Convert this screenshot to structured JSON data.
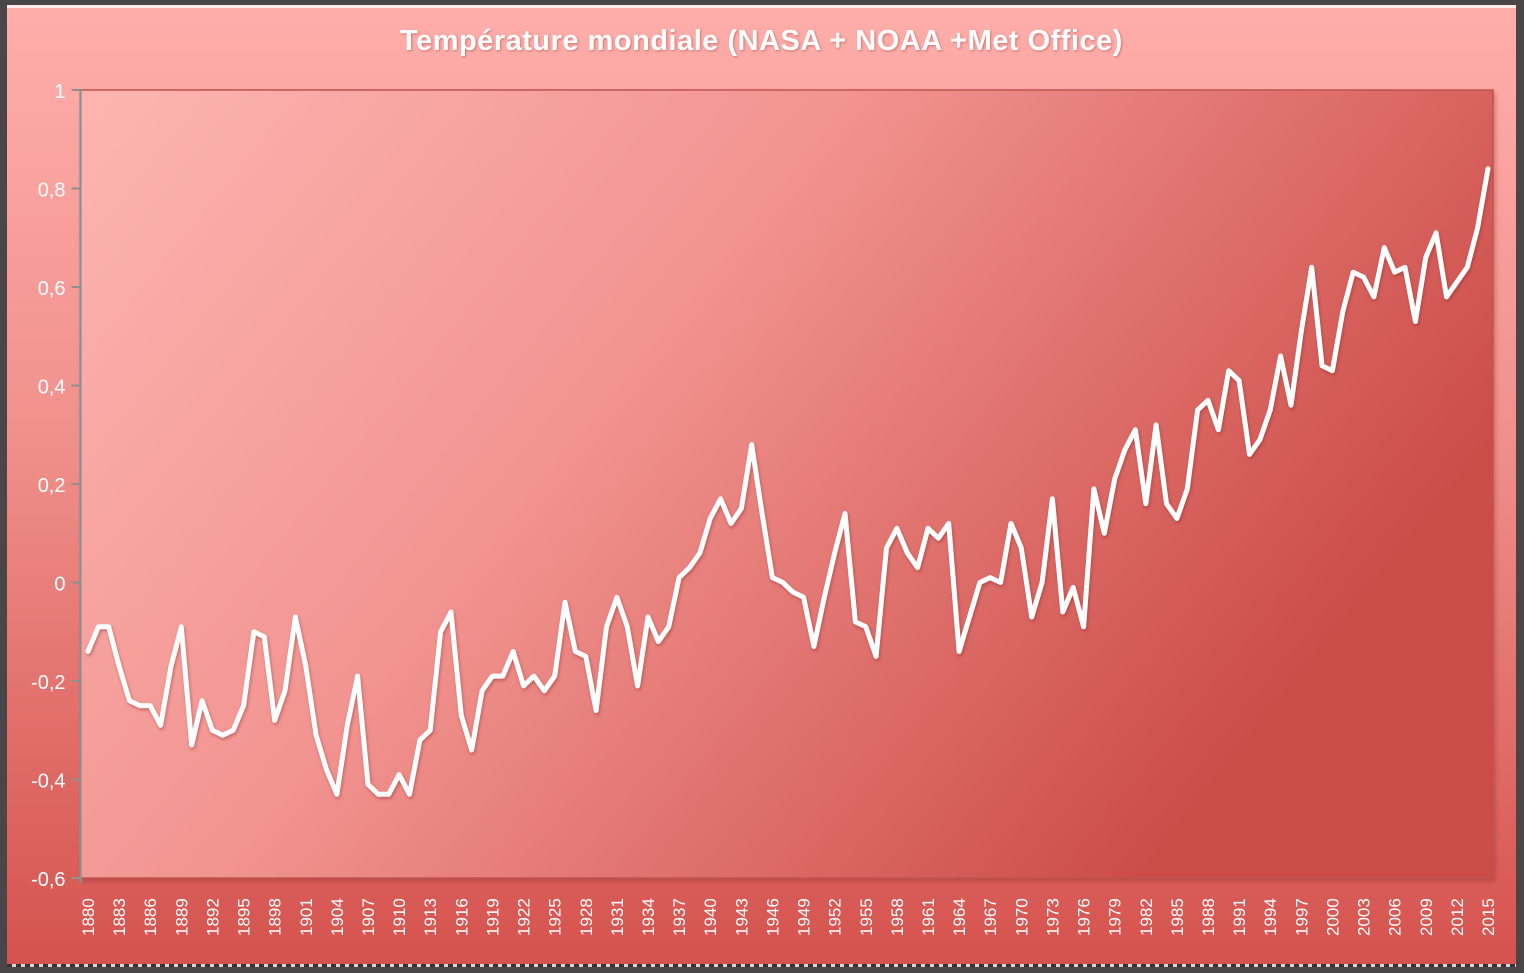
{
  "chart_data": {
    "type": "line",
    "title": "Température mondiale (NASA + NOAA +Met Office)",
    "xlabel": "",
    "ylabel": "",
    "ylim": [
      -0.6,
      1
    ],
    "grid": false,
    "legend_position": "none",
    "decimal_separator": ",",
    "yticks": [
      1,
      0.8,
      0.6,
      0.4,
      0.2,
      0,
      -0.2,
      -0.4,
      -0.6
    ],
    "ytick_labels": [
      "1",
      "0,8",
      "0,6",
      "0,4",
      "0,2",
      "0",
      "-0,2",
      "-0,4",
      "-0,6"
    ],
    "xticks": [
      1880,
      1883,
      1886,
      1889,
      1892,
      1895,
      1898,
      1901,
      1904,
      1907,
      1910,
      1913,
      1916,
      1919,
      1922,
      1925,
      1928,
      1931,
      1934,
      1937,
      1940,
      1943,
      1946,
      1949,
      1952,
      1955,
      1958,
      1961,
      1964,
      1967,
      1970,
      1973,
      1976,
      1979,
      1982,
      1985,
      1988,
      1991,
      1994,
      1997,
      2000,
      2003,
      2006,
      2009,
      2012,
      2015
    ],
    "x": [
      1880,
      1881,
      1882,
      1883,
      1884,
      1885,
      1886,
      1887,
      1888,
      1889,
      1890,
      1891,
      1892,
      1893,
      1894,
      1895,
      1896,
      1897,
      1898,
      1899,
      1900,
      1901,
      1902,
      1903,
      1904,
      1905,
      1906,
      1907,
      1908,
      1909,
      1910,
      1911,
      1912,
      1913,
      1914,
      1915,
      1916,
      1917,
      1918,
      1919,
      1920,
      1921,
      1922,
      1923,
      1924,
      1925,
      1926,
      1927,
      1928,
      1929,
      1930,
      1931,
      1932,
      1933,
      1934,
      1935,
      1936,
      1937,
      1938,
      1939,
      1940,
      1941,
      1942,
      1943,
      1944,
      1945,
      1946,
      1947,
      1948,
      1949,
      1950,
      1951,
      1952,
      1953,
      1954,
      1955,
      1956,
      1957,
      1958,
      1959,
      1960,
      1961,
      1962,
      1963,
      1964,
      1965,
      1966,
      1967,
      1968,
      1969,
      1970,
      1971,
      1972,
      1973,
      1974,
      1975,
      1976,
      1977,
      1978,
      1979,
      1980,
      1981,
      1982,
      1983,
      1984,
      1985,
      1986,
      1987,
      1988,
      1989,
      1990,
      1991,
      1992,
      1993,
      1994,
      1995,
      1996,
      1997,
      1998,
      1999,
      2000,
      2001,
      2002,
      2003,
      2004,
      2005,
      2006,
      2007,
      2008,
      2009,
      2010,
      2011,
      2012,
      2013,
      2014,
      2015
    ],
    "series": [
      {
        "name": "Température mondiale (NASA + NOAA +Met Office)",
        "color": "#ffffff",
        "values": [
          -0.14,
          -0.09,
          -0.09,
          -0.17,
          -0.24,
          -0.25,
          -0.25,
          -0.29,
          -0.17,
          -0.09,
          -0.33,
          -0.24,
          -0.3,
          -0.31,
          -0.3,
          -0.25,
          -0.1,
          -0.11,
          -0.28,
          -0.22,
          -0.07,
          -0.17,
          -0.31,
          -0.38,
          -0.43,
          -0.29,
          -0.19,
          -0.41,
          -0.43,
          -0.43,
          -0.39,
          -0.43,
          -0.32,
          -0.3,
          -0.1,
          -0.06,
          -0.27,
          -0.34,
          -0.22,
          -0.19,
          -0.19,
          -0.14,
          -0.21,
          -0.19,
          -0.22,
          -0.19,
          -0.04,
          -0.14,
          -0.15,
          -0.26,
          -0.09,
          -0.03,
          -0.09,
          -0.21,
          -0.07,
          -0.12,
          -0.09,
          0.01,
          0.03,
          0.06,
          0.13,
          0.17,
          0.12,
          0.15,
          0.28,
          0.14,
          0.01,
          0.0,
          -0.02,
          -0.03,
          -0.13,
          -0.03,
          0.06,
          0.14,
          -0.08,
          -0.09,
          -0.15,
          0.07,
          0.11,
          0.06,
          0.03,
          0.11,
          0.09,
          0.12,
          -0.14,
          -0.07,
          0.0,
          0.01,
          0.0,
          0.12,
          0.07,
          -0.07,
          0.0,
          0.17,
          -0.06,
          -0.01,
          -0.09,
          0.19,
          0.1,
          0.21,
          0.27,
          0.31,
          0.16,
          0.32,
          0.16,
          0.13,
          0.19,
          0.35,
          0.37,
          0.31,
          0.43,
          0.41,
          0.26,
          0.29,
          0.35,
          0.46,
          0.36,
          0.51,
          0.64,
          0.44,
          0.43,
          0.55,
          0.63,
          0.62,
          0.58,
          0.68,
          0.63,
          0.64,
          0.53,
          0.66,
          0.71,
          0.58,
          0.61,
          0.64,
          0.72,
          0.84
        ]
      }
    ]
  },
  "colors": {
    "frame": "#4a4547",
    "background_top": "#ffaeab",
    "background_mid": "#f0908b",
    "background_bottom": "#d5524e",
    "plot_gradient_start": "#fdb5b1",
    "plot_gradient_mid": "#f29490",
    "plot_gradient_end": "#cc4c48",
    "plot_border": "#c05551",
    "axis": "#8f8f8f",
    "tick_label": "#ffffff",
    "title_text": "#ffffff",
    "line": "#ffffff"
  }
}
